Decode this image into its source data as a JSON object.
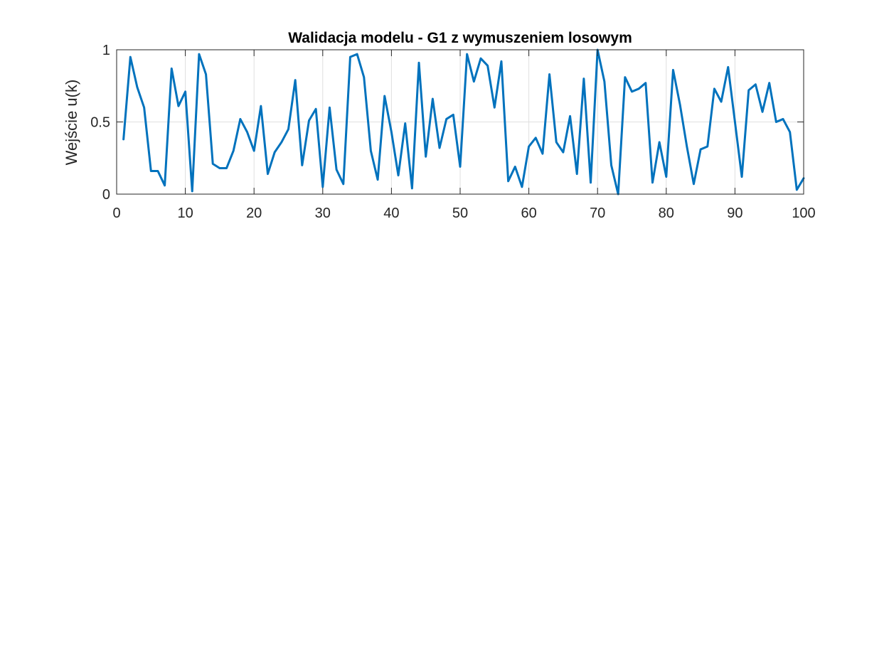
{
  "chart_data": {
    "type": "line",
    "title": "Walidacja modelu - G1 z wymuszeniem losowym",
    "xlabel": "",
    "ylabel": "Wejście u(k)",
    "xlim": [
      0,
      100
    ],
    "ylim": [
      0,
      1
    ],
    "x_ticks": [
      0,
      10,
      20,
      30,
      40,
      50,
      60,
      70,
      80,
      90,
      100
    ],
    "y_ticks": [
      0,
      0.5,
      1
    ],
    "x_tick_labels": [
      "0",
      "10",
      "20",
      "30",
      "40",
      "50",
      "60",
      "70",
      "80",
      "90",
      "100"
    ],
    "y_tick_labels": [
      "0",
      "0.5",
      "1"
    ],
    "grid": true,
    "line_color": "#0072BD",
    "series": [
      {
        "x": [
          1,
          2,
          3,
          4,
          5,
          6,
          7,
          8,
          9,
          10,
          11,
          12,
          13,
          14,
          15,
          16,
          17,
          18,
          19,
          20,
          21,
          22,
          23,
          24,
          25,
          26,
          27,
          28,
          29,
          30,
          31,
          32,
          33,
          34,
          35,
          36,
          37,
          38,
          39,
          40,
          41,
          42,
          43,
          44,
          45,
          46,
          47,
          48,
          49,
          50,
          51,
          52,
          53,
          54,
          55,
          56,
          57,
          58,
          59,
          60,
          61,
          62,
          63,
          64,
          65,
          66,
          67,
          68,
          69,
          70,
          71,
          72,
          73,
          74,
          75,
          76,
          77,
          78,
          79,
          80,
          81,
          82,
          83,
          84,
          85,
          86,
          87,
          88,
          89,
          90,
          91,
          92,
          93,
          94,
          95,
          96,
          97,
          98,
          99,
          100
        ],
        "values": [
          0.38,
          0.95,
          0.74,
          0.6,
          0.16,
          0.16,
          0.06,
          0.87,
          0.61,
          0.71,
          0.02,
          0.97,
          0.83,
          0.21,
          0.18,
          0.18,
          0.3,
          0.52,
          0.43,
          0.3,
          0.61,
          0.14,
          0.29,
          0.36,
          0.45,
          0.79,
          0.2,
          0.51,
          0.59,
          0.05,
          0.6,
          0.17,
          0.07,
          0.95,
          0.97,
          0.81,
          0.3,
          0.1,
          0.68,
          0.43,
          0.13,
          0.49,
          0.04,
          0.91,
          0.26,
          0.66,
          0.32,
          0.52,
          0.55,
          0.19,
          0.97,
          0.78,
          0.94,
          0.89,
          0.6,
          0.92,
          0.09,
          0.19,
          0.05,
          0.33,
          0.39,
          0.28,
          0.83,
          0.36,
          0.29,
          0.54,
          0.14,
          0.8,
          0.08,
          1.0,
          0.78,
          0.2,
          0.0,
          0.81,
          0.71,
          0.73,
          0.77,
          0.08,
          0.36,
          0.12,
          0.86,
          0.62,
          0.33,
          0.07,
          0.31,
          0.33,
          0.73,
          0.64,
          0.88,
          0.5,
          0.12,
          0.72,
          0.76,
          0.57,
          0.77,
          0.5,
          0.52,
          0.43,
          0.03,
          0.11
        ]
      }
    ]
  }
}
